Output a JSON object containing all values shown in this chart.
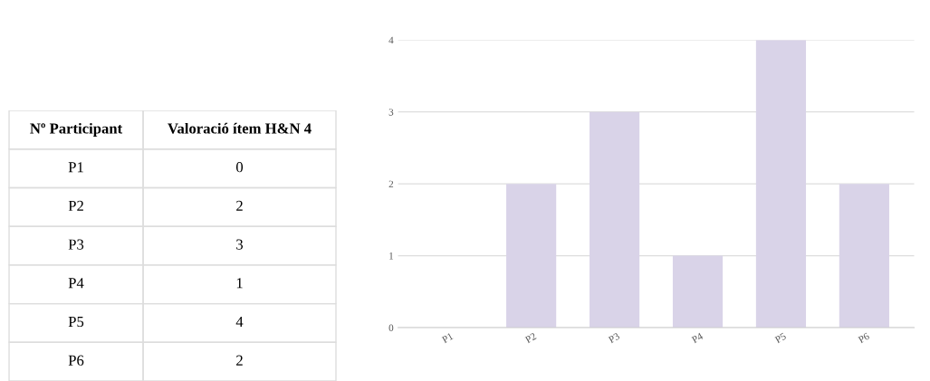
{
  "chart_data": [
    {
      "type": "other",
      "annotations": [
        "Nº Participant",
        "Valoració ítem H&N 4",
        "P1",
        "0",
        "P2",
        "2",
        "P3",
        "3",
        "P4",
        "1",
        "P5",
        "4",
        "P6",
        "2"
      ]
    },
    {
      "type": "bar",
      "categories": [
        "P1",
        "P2",
        "P3",
        "P4",
        "P5",
        "P6"
      ],
      "values": [
        0,
        2,
        3,
        1,
        4,
        2
      ],
      "color": "#d9d3e8",
      "ylim": [
        0,
        4
      ],
      "yticks": [
        0,
        1,
        2,
        3,
        4
      ],
      "grid": "y"
    }
  ]
}
